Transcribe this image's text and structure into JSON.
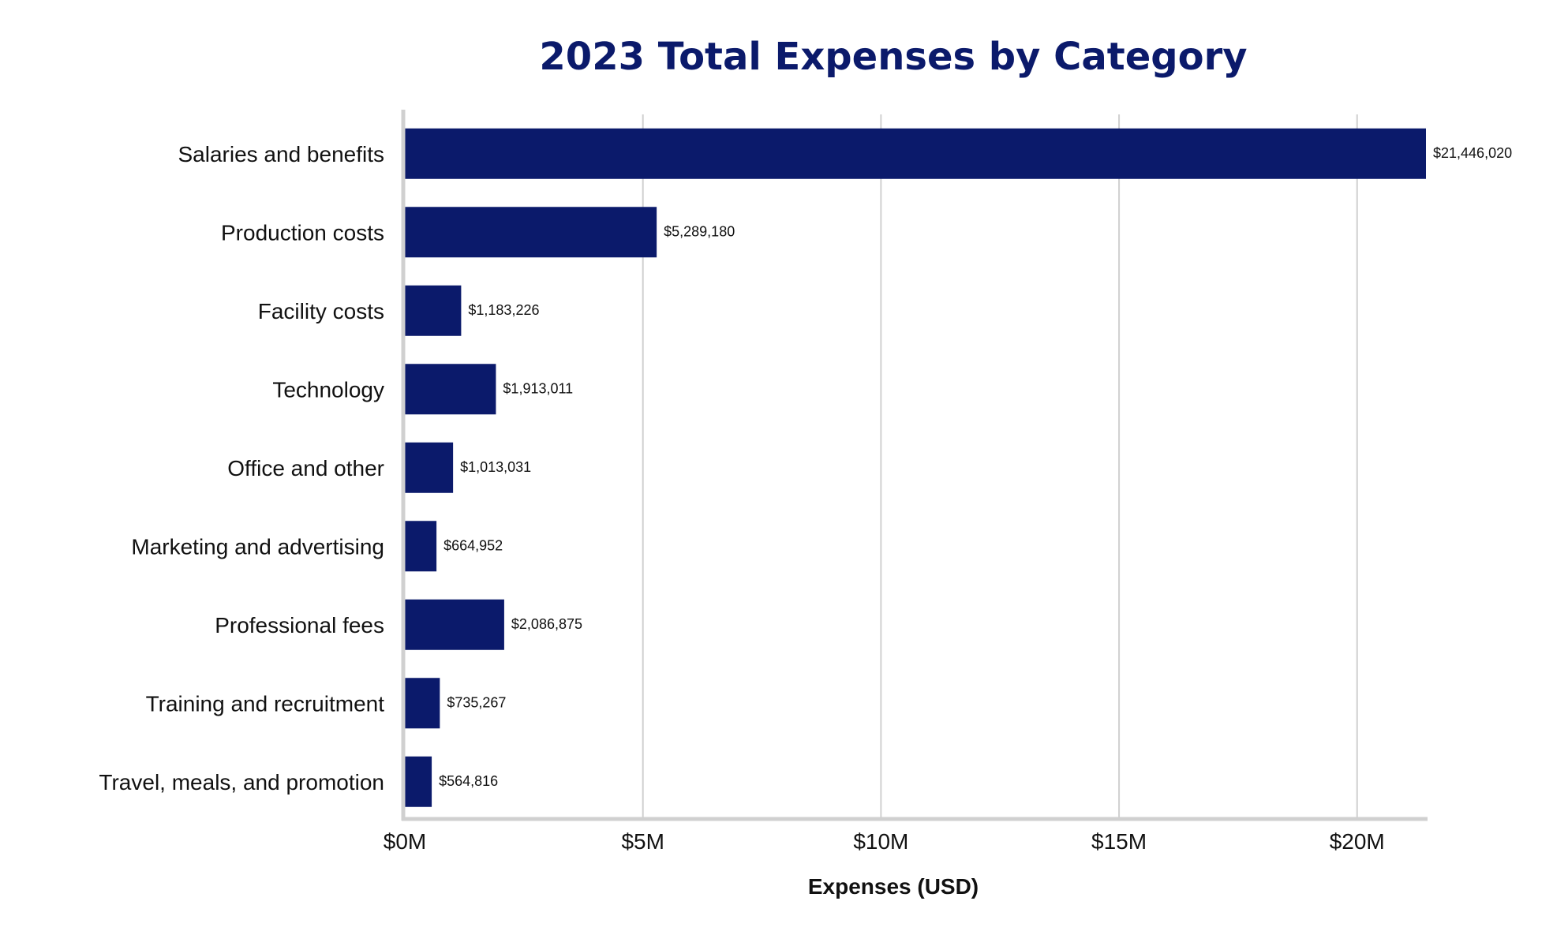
{
  "chart_data": {
    "type": "bar",
    "orientation": "horizontal",
    "title": "2023 Total Expenses by Category",
    "xlabel": "Expenses (USD)",
    "ylabel": "",
    "categories": [
      "Salaries and benefits",
      "Production costs",
      "Facility costs",
      "Technology",
      "Office and other",
      "Marketing and advertising",
      "Professional fees",
      "Training and recruitment",
      "Travel, meals, and promotion"
    ],
    "values": [
      21446020,
      5289180,
      1183226,
      1913011,
      1013031,
      664952,
      2086875,
      735267,
      564816
    ],
    "value_labels": [
      "$21,446,020",
      "$5,289,180",
      "$1,183,226",
      "$1,913,011",
      "$1,013,031",
      "$664,952",
      "$2,086,875",
      "$735,267",
      "$564,816"
    ],
    "xticks": [
      0,
      5000000,
      10000000,
      15000000,
      20000000
    ],
    "xtick_labels": [
      "$0M",
      "$5M",
      "$10M",
      "$15M",
      "$20M"
    ],
    "xlim": [
      0,
      21446020
    ],
    "grid": "vertical",
    "legend": "none",
    "colors": {
      "bar": "#0b1a6b",
      "title": "#0b1a6b",
      "grid": "#d0d0d0",
      "axis": "#d0d0d0",
      "text": "#111111"
    }
  }
}
